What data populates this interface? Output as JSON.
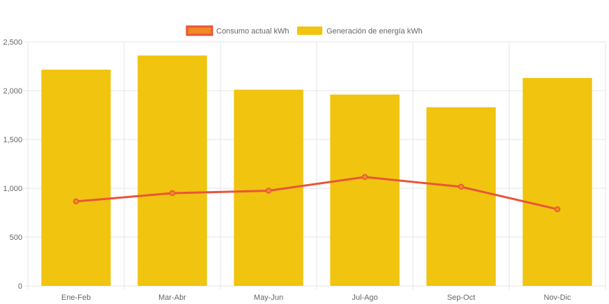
{
  "chart_data": {
    "type": "bar",
    "categories": [
      "Ene-Feb",
      "Mar-Abr",
      "May-Jun",
      "Jul-Ago",
      "Sep-Oct",
      "Nov-Dic"
    ],
    "series": [
      {
        "name": "Consumo actual kWh",
        "type": "line",
        "values": [
          865,
          950,
          975,
          1115,
          1015,
          785
        ],
        "color": "#e8553a",
        "fill_color": "#f08a24"
      },
      {
        "name": "Generación de energía kWh",
        "type": "bar",
        "values": [
          2215,
          2360,
          2010,
          1960,
          1830,
          2130
        ],
        "color": "#f0c40f"
      }
    ],
    "ylim": [
      0,
      2500
    ],
    "yticks": [
      "0",
      "500",
      "1,000",
      "1,500",
      "2,000",
      "2,500"
    ],
    "ytick_values": [
      0,
      500,
      1000,
      1500,
      2000,
      2500
    ],
    "grid": true,
    "legend_position": "top-center"
  }
}
